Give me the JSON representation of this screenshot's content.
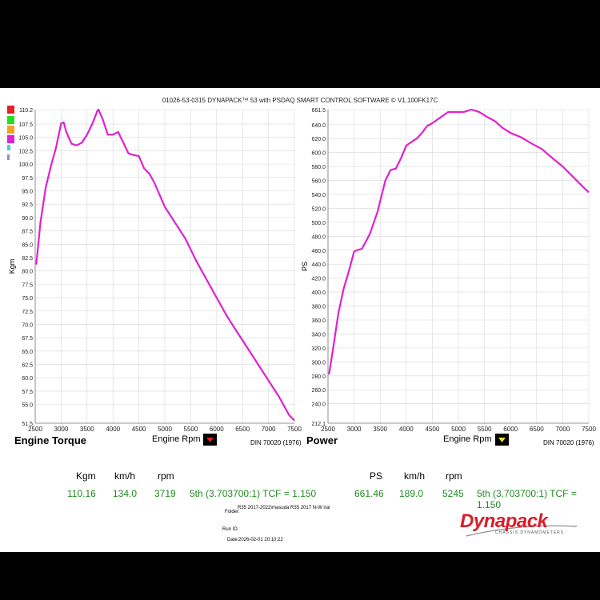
{
  "header": {
    "title": "01026-53-0315 DYNAPACK™ 53 with PSDAQ SMART CONTROL SOFTWARE © V1.100FK17C"
  },
  "colors": {
    "curve": "#e020d0",
    "grid": "#d8d8d8",
    "swatches": [
      "#e82020",
      "#20e020",
      "#f5a020",
      "#e020d0",
      "#40d0e0",
      "#9090c0"
    ],
    "arrow_torque": "#e02020",
    "arrow_power": "#e8e020"
  },
  "chart_data": [
    {
      "type": "line",
      "title": "Engine Torque",
      "xlabel": "Engine Rpm",
      "ylabel": "Kgm",
      "note": "DIN 70020 (1976)",
      "xlim": [
        2500,
        7500
      ],
      "ylim": [
        51.5,
        110.2
      ],
      "x_ticks": [
        "2500",
        "3000",
        "3500",
        "4000",
        "4500",
        "5000",
        "5500",
        "6000",
        "6500",
        "7000",
        "7500"
      ],
      "y_ticks": [
        "110.2",
        "107.5",
        "105.0",
        "102.5",
        "100.0",
        "97.5",
        "95.0",
        "92.5",
        "90.0",
        "87.5",
        "85.0",
        "82.5",
        "80.0",
        "77.5",
        "75.0",
        "72.5",
        "70.0",
        "67.5",
        "65.0",
        "62.5",
        "60.0",
        "57.5",
        "55.0",
        "51.5"
      ],
      "series": [
        {
          "x": [
            2520,
            2600,
            2700,
            2800,
            2900,
            3000,
            3050,
            3100,
            3200,
            3300,
            3400,
            3500,
            3600,
            3700,
            3720,
            3800,
            3900,
            4000,
            4100,
            4200,
            4300,
            4400,
            4500,
            4600,
            4700,
            4800,
            5000,
            5200,
            5400,
            5600,
            5800,
            6000,
            6200,
            6400,
            6600,
            6800,
            7000,
            7200,
            7400,
            7500
          ],
          "values": [
            81.2,
            89.0,
            95.5,
            99.5,
            103.0,
            107.6,
            107.8,
            106.0,
            103.8,
            103.5,
            104.0,
            105.5,
            107.5,
            110.0,
            110.2,
            108.5,
            105.5,
            105.5,
            106.0,
            104.0,
            102.0,
            101.7,
            101.5,
            99.2,
            98.2,
            96.5,
            92.0,
            89.0,
            86.0,
            82.0,
            78.5,
            75.0,
            71.5,
            68.5,
            65.5,
            62.5,
            59.5,
            56.5,
            53.0,
            52.0
          ]
        }
      ]
    },
    {
      "type": "line",
      "title": "Power",
      "xlabel": "Engine Rpm",
      "ylabel": "PS",
      "note": "DIN 70020 (1976)",
      "xlim": [
        2500,
        7500
      ],
      "ylim": [
        212.1,
        661.5
      ],
      "x_ticks": [
        "2500",
        "3000",
        "3500",
        "4000",
        "4500",
        "5000",
        "5500",
        "6000",
        "6500",
        "7000",
        "7500"
      ],
      "y_ticks": [
        "661.5",
        "640.0",
        "620.0",
        "600.0",
        "580.0",
        "560.0",
        "540.0",
        "520.0",
        "500.0",
        "480.0",
        "460.0",
        "440.0",
        "420.0",
        "400.0",
        "380.0",
        "360.0",
        "340.0",
        "320.0",
        "300.0",
        "280.0",
        "260.0",
        "240.0",
        "212.1"
      ],
      "series": [
        {
          "x": [
            2520,
            2600,
            2700,
            2800,
            2900,
            3000,
            3050,
            3150,
            3300,
            3450,
            3600,
            3700,
            3800,
            3900,
            4000,
            4100,
            4200,
            4300,
            4400,
            4500,
            4650,
            4800,
            4950,
            5100,
            5250,
            5400,
            5550,
            5700,
            5850,
            6000,
            6200,
            6400,
            6600,
            6800,
            7000,
            7200,
            7400,
            7500
          ],
          "values": [
            282,
            320,
            370,
            405,
            430,
            458,
            460,
            462,
            483,
            515,
            560,
            575,
            577,
            592,
            610,
            615,
            620,
            628,
            638,
            642,
            650,
            658,
            658,
            658,
            661.5,
            658,
            651,
            645,
            635,
            628,
            622,
            613,
            605,
            592,
            580,
            565,
            550,
            543
          ]
        }
      ]
    }
  ],
  "charts": [
    {
      "title": "Engine Torque",
      "xlabel": "Engine Rpm",
      "ylabel": "Kgm",
      "note": "DIN 70020 (1976)"
    },
    {
      "title": "Power",
      "xlabel": "Engine Rpm",
      "ylabel": "PS",
      "note": "DIN 70020 (1976)"
    }
  ],
  "summary": {
    "left": {
      "h1": "Kgm",
      "h2": "km/h",
      "h3": "rpm",
      "v1": "110.16",
      "v2": "134.0",
      "v3": "3719",
      "gear": "5th (3.703700:1) TCF = 1.150"
    },
    "right": {
      "h1": "PS",
      "h2": "km/h",
      "h3": "rpm",
      "v1": "661.46",
      "v2": "189.0",
      "v3": "5245",
      "gear": "5th (3.703700:1) TCF = 1.150"
    }
  },
  "footer": {
    "folder_label": "Folder:",
    "folder_value": "R35 2017-2022\\masuda R35 2017 N-W irai",
    "run_label": "Run ID:",
    "date_label": "Date:",
    "date_value": "2026-02-01 20:10:22"
  },
  "logo": {
    "word": "Dynapack",
    "sub": "CHASSIS DYNAMOMETERS"
  }
}
